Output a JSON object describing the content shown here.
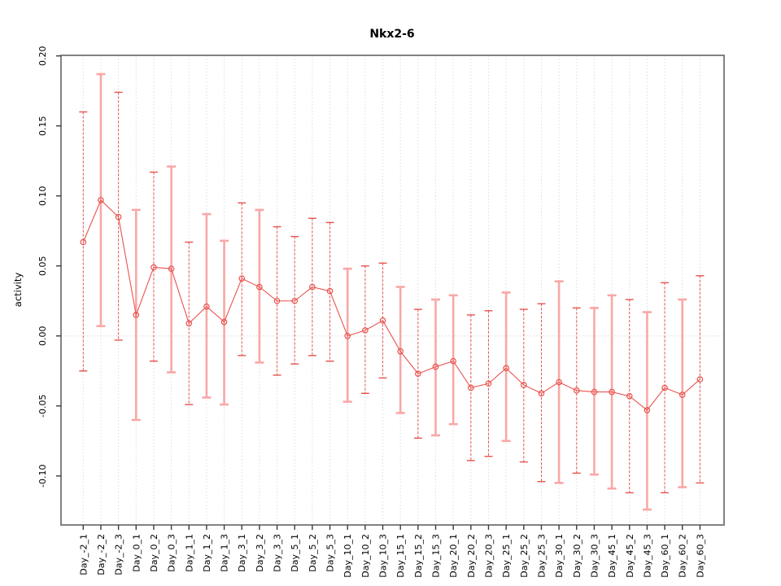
{
  "title": "Nkx2-6",
  "chart_data": {
    "type": "line",
    "title": "Nkx2-6",
    "xlabel": "",
    "ylabel": "activity",
    "legend": null,
    "grid": "vertical-dotted",
    "zero_line": true,
    "ylim": [
      -0.135,
      0.2004
    ],
    "yticks": [
      0.2,
      0.15,
      0.1,
      0.05,
      0.0,
      -0.05,
      -0.1
    ],
    "ytick_labels": [
      "0.20",
      "0.15",
      "0.10",
      "0.05",
      "0.00",
      "-0.05",
      "-0.10"
    ],
    "categories": [
      "Day_-2_1",
      "Day_-2_2",
      "Day_-2_3",
      "Day_0_1",
      "Day_0_2",
      "Day_0_3",
      "Day_1_1",
      "Day_1_2",
      "Day_1_3",
      "Day_3_1",
      "Day_3_2",
      "Day_3_3",
      "Day_5_1",
      "Day_5_2",
      "Day_5_3",
      "Day_10_1",
      "Day_10_2",
      "Day_10_3",
      "Day_15_1",
      "Day_15_2",
      "Day_15_3",
      "Day_20_1",
      "Day_20_2",
      "Day_20_3",
      "Day_25_1",
      "Day_25_2",
      "Day_25_3",
      "Day_30_1",
      "Day_30_2",
      "Day_30_3",
      "Day_45_1",
      "Day_45_2",
      "Day_45_3",
      "Day_60_1",
      "Day_60_2",
      "Day_60_3"
    ],
    "series": [
      {
        "name": "activity",
        "values": [
          0.067,
          0.097,
          0.085,
          0.015,
          0.049,
          0.048,
          0.009,
          0.021,
          0.01,
          0.041,
          0.035,
          0.025,
          0.025,
          0.035,
          0.032,
          0.0,
          0.004,
          0.011,
          -0.011,
          -0.027,
          -0.022,
          -0.018,
          -0.037,
          -0.034,
          -0.023,
          -0.035,
          -0.041,
          -0.033,
          -0.039,
          -0.04,
          -0.04,
          -0.043,
          -0.053,
          -0.037,
          -0.042,
          -0.031
        ]
      }
    ],
    "error_high": [
      0.16,
      0.187,
      0.174,
      0.09,
      0.117,
      0.121,
      0.067,
      0.087,
      0.068,
      0.095,
      0.09,
      0.078,
      0.071,
      0.084,
      0.081,
      0.048,
      0.05,
      0.052,
      0.035,
      0.019,
      0.026,
      0.029,
      0.015,
      0.018,
      0.031,
      0.019,
      0.023,
      0.039,
      0.02,
      0.02,
      0.029,
      0.026,
      0.017,
      0.038,
      0.026,
      0.043
    ],
    "error_low": [
      -0.025,
      0.007,
      -0.003,
      -0.06,
      -0.018,
      -0.026,
      -0.049,
      -0.044,
      -0.049,
      -0.014,
      -0.019,
      -0.028,
      -0.02,
      -0.014,
      -0.018,
      -0.047,
      -0.041,
      -0.03,
      -0.055,
      -0.073,
      -0.071,
      -0.063,
      -0.089,
      -0.086,
      -0.075,
      -0.09,
      -0.104,
      -0.105,
      -0.098,
      -0.099,
      -0.109,
      -0.112,
      -0.124,
      -0.112,
      -0.108,
      -0.105
    ],
    "error_bar_styles": [
      "dashed",
      "solid",
      "dashed",
      "solid",
      "dashed",
      "solid",
      "dashed",
      "solid",
      "solid",
      "dashed",
      "solid",
      "dashed",
      "dashed",
      "dashed",
      "dashed",
      "solid",
      "dashed",
      "dashed",
      "solid",
      "dashed",
      "solid",
      "solid",
      "dashed",
      "dashed",
      "solid",
      "dashed",
      "dashed",
      "solid",
      "dashed",
      "solid",
      "solid",
      "dashed",
      "solid",
      "dashed",
      "solid",
      "dashed"
    ],
    "colors": {
      "series": "#e8534e",
      "bar_dashed": "#e8534e",
      "bar_solid": "#f8a8a6",
      "grid": "#dedede",
      "zero_line": "#dcdcdc",
      "axis_box": "#828282",
      "tick": "#3a3a3a",
      "text": "#000000"
    }
  }
}
